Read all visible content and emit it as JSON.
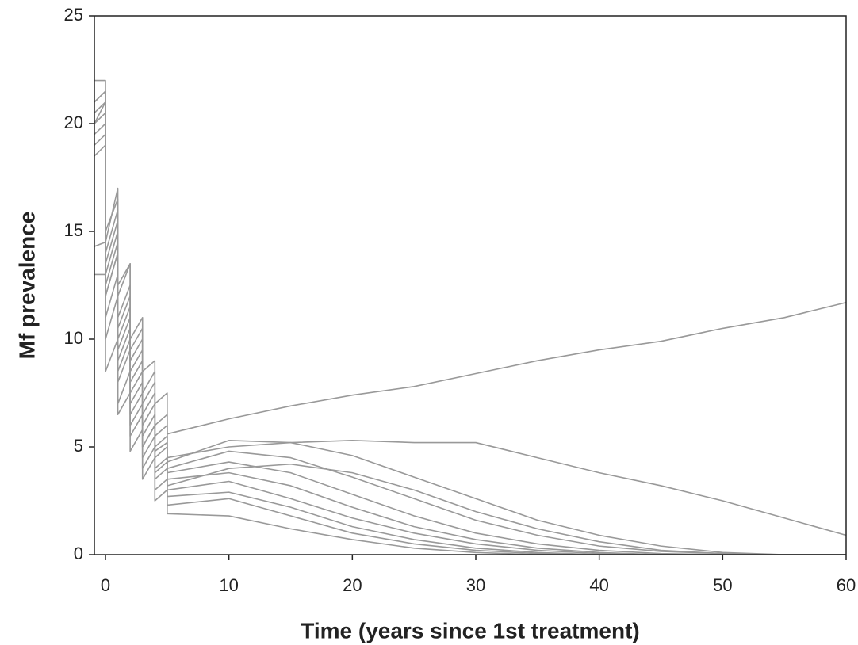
{
  "chart_data": {
    "type": "line",
    "xlabel": "Time (years since 1st treatment)",
    "ylabel": "Mf prevalence",
    "color": "#999999",
    "x": [
      -0.9,
      0,
      0,
      1,
      1,
      2,
      2,
      3,
      3,
      4,
      4,
      5,
      5,
      10,
      15,
      20,
      25,
      30,
      35,
      40,
      45,
      50,
      55,
      60
    ],
    "series": [
      {
        "values": [
          20,
          20.5,
          15,
          16.5,
          12.5,
          13.5,
          10,
          11,
          8.5,
          9,
          7,
          7.5,
          5.6,
          6.3,
          6.9,
          7.4,
          7.8,
          8.4,
          9.0,
          9.5,
          9.9,
          10.5,
          11.0,
          11.7
        ]
      },
      {
        "values": [
          21,
          21.5,
          14.5,
          17,
          12,
          13.5,
          9.5,
          10.5,
          7.5,
          8.5,
          6,
          6.5,
          4.5,
          5.0,
          5.2,
          5.3,
          5.2,
          5.2,
          4.5,
          3.8,
          3.2,
          2.5,
          1.7,
          0.9
        ]
      },
      {
        "values": [
          19,
          19.5,
          13.5,
          15.5,
          11,
          12.5,
          9,
          10,
          7,
          8,
          5.5,
          6,
          4.3,
          5.3,
          5.2,
          4.6,
          3.6,
          2.6,
          1.6,
          0.9,
          0.4,
          0.1,
          0,
          0
        ]
      },
      {
        "values": [
          22,
          22,
          14,
          16,
          10.5,
          12,
          8.5,
          9.5,
          6.5,
          7.5,
          5,
          5.5,
          4.0,
          4.8,
          4.5,
          3.6,
          2.6,
          1.6,
          0.9,
          0.4,
          0.15,
          0.05,
          0,
          0
        ]
      },
      {
        "values": [
          20,
          21,
          13,
          15,
          10,
          11.5,
          8,
          9,
          6,
          7,
          4.8,
          5.2,
          3.8,
          4.3,
          3.8,
          2.8,
          1.8,
          1.0,
          0.5,
          0.2,
          0.05,
          0,
          0,
          0
        ]
      },
      {
        "values": [
          18.5,
          19,
          12.5,
          14.5,
          9.5,
          11,
          7.5,
          8.5,
          5.5,
          6.5,
          4.5,
          5,
          3.5,
          3.8,
          3.2,
          2.2,
          1.3,
          0.7,
          0.3,
          0.1,
          0,
          0,
          0,
          0
        ]
      },
      {
        "values": [
          19.5,
          20,
          12,
          14,
          9,
          10.5,
          7,
          8,
          5,
          6,
          4,
          4.5,
          3.0,
          3.4,
          2.6,
          1.7,
          1.0,
          0.5,
          0.2,
          0.05,
          0,
          0,
          0,
          0
        ]
      },
      {
        "values": [
          21,
          21.5,
          11,
          13,
          8,
          9.5,
          6,
          7,
          4.5,
          5.5,
          3.5,
          4,
          2.7,
          2.9,
          2.2,
          1.3,
          0.7,
          0.3,
          0.1,
          0,
          0,
          0,
          0,
          0
        ]
      },
      {
        "values": [
          14.3,
          14.5,
          10,
          12,
          7,
          8.5,
          5.5,
          6.5,
          4,
          5,
          3,
          3.5,
          2.3,
          2.6,
          1.8,
          1.0,
          0.5,
          0.2,
          0.05,
          0,
          0,
          0,
          0,
          0
        ]
      },
      {
        "values": [
          13,
          13,
          8.5,
          10,
          6.5,
          7.5,
          4.8,
          5.8,
          3.5,
          4.5,
          2.5,
          3,
          1.9,
          1.8,
          1.2,
          0.7,
          0.3,
          0.1,
          0,
          0,
          0,
          0,
          0,
          0
        ]
      },
      {
        "values": [
          20.5,
          21,
          12,
          14,
          8.5,
          10,
          6.5,
          7.5,
          5,
          6,
          3.8,
          4.3,
          3.2,
          4.0,
          4.2,
          3.8,
          3.0,
          2.0,
          1.2,
          0.6,
          0.2,
          0.05,
          0,
          0
        ]
      }
    ],
    "xlim": [
      -0.9,
      60
    ],
    "xticks": [
      0,
      10,
      20,
      30,
      40,
      50,
      60
    ],
    "ylim": [
      0,
      25
    ],
    "yticks": [
      0,
      5,
      10,
      15,
      20,
      25
    ],
    "grid": false
  }
}
